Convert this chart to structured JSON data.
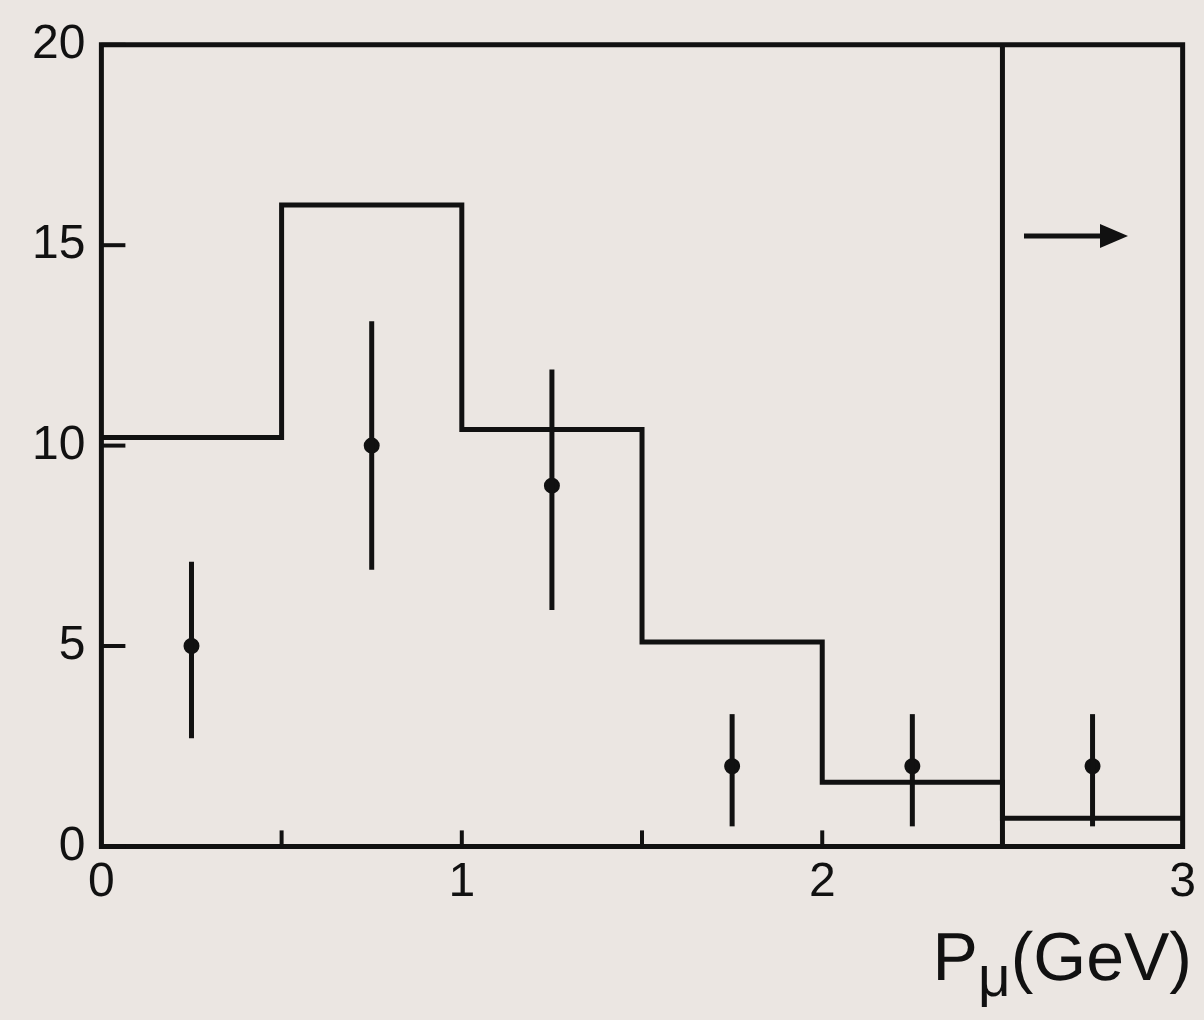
{
  "chart_data": {
    "type": "histogram",
    "xlabel": "P$_{μ}$(GeV)",
    "xlim": [
      0,
      3
    ],
    "xticks": [
      0,
      {
        "value": 0.5,
        "label": null
      },
      1,
      {
        "value": 1.5,
        "label": null
      },
      2,
      {
        "value": 2.5,
        "label": null
      },
      3
    ],
    "ylim": [
      0,
      20
    ],
    "yticks": [
      0,
      5,
      10,
      15,
      20
    ],
    "series": [
      {
        "color": "#111111",
        "bins": [
          0,
          0.5,
          1,
          1.5,
          2,
          2.5,
          3
        ],
        "values": [
          10.2,
          16,
          10.4,
          5.1,
          1.6,
          0.7
        ]
      },
      {
        "type": "scatter",
        "color": "#111111",
        "x": [
          0.25,
          0.75,
          1.25,
          1.75,
          2.25,
          2.75
        ],
        "values": [
          5,
          10,
          9,
          2,
          2,
          2
        ],
        "errors": [
          [
            2.7,
            7.1
          ],
          [
            6.9,
            13.1
          ],
          [
            5.9,
            11.9
          ],
          [
            0.5,
            3.3
          ],
          [
            0.5,
            3.3
          ],
          [
            0.5,
            3.3
          ]
        ]
      }
    ],
    "ref_lines": [
      {
        "axis": "x",
        "value": 2.5,
        "color": "#111111"
      }
    ],
    "grid": false,
    "legend": false,
    "marker": "circle"
  }
}
